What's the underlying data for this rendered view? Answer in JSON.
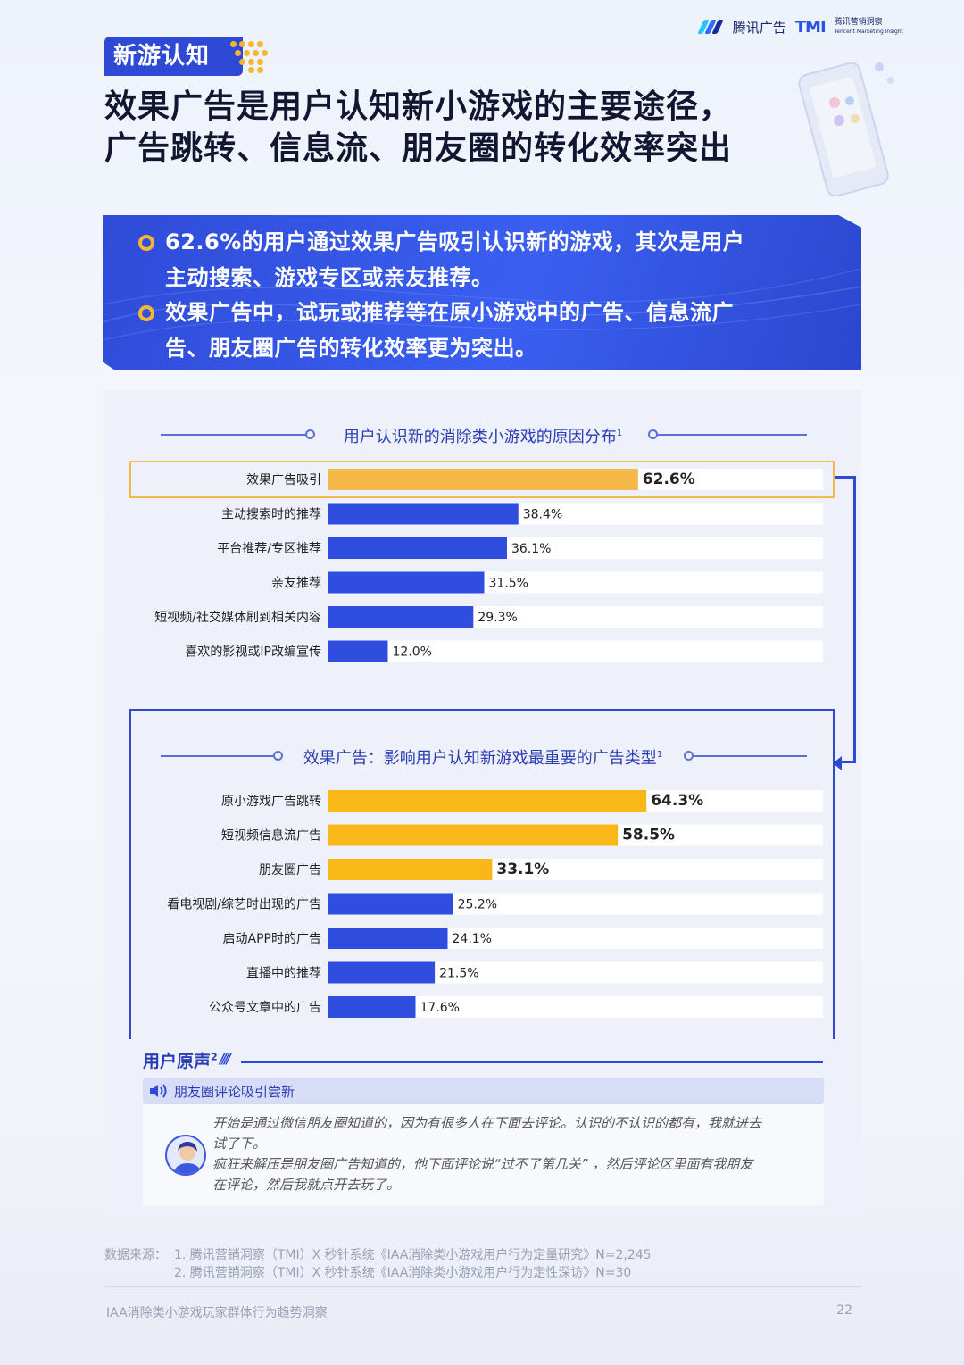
{
  "header": {
    "brand_cn": "腾讯广告",
    "brand_tmi": "TMI",
    "brand_tmi_sub_cn": "腾讯营销洞察",
    "brand_tmi_sub_en": "Tencent Marketing Insight"
  },
  "section_tag": "新游认知",
  "headline": {
    "line1": "效果广告是用户认知新小游戏的主要途径，",
    "line2": "广告跳转、信息流、朋友圈的转化效率突出"
  },
  "banner": {
    "item1_line1": "62.6%的用户通过效果广告吸引认识新的游戏，其次是用户",
    "item1_line2": "主动搜索、游戏专区或亲友推荐。",
    "item2_line1": "效果广告中，试玩或推荐等在原小游戏中的广告、信息流广",
    "item2_line2": "告、朋友圈广告的转化效率更为突出。"
  },
  "chart_data": [
    {
      "type": "bar",
      "orientation": "horizontal",
      "title": "用户认识新的消除类小游戏的原因分布",
      "title_sup": "1",
      "categories": [
        "效果广告吸引",
        "主动搜索时的推荐",
        "平台推荐/专区推荐",
        "亲友推荐",
        "短视频/社交媒体刷到相关内容",
        "喜欢的影视或IP改编宣传"
      ],
      "values": [
        62.6,
        38.4,
        36.1,
        31.5,
        29.3,
        12.0
      ],
      "value_labels": [
        "62.6%",
        "38.4%",
        "36.1%",
        "31.5%",
        "29.3%",
        "12.0%"
      ],
      "highlight": [
        true,
        false,
        false,
        false,
        false,
        false
      ],
      "xlim": [
        0,
        100
      ],
      "colors": {
        "default": "#2f4ee0",
        "highlight": "#f5b94a",
        "highlight_text": "#e8a020",
        "track": "#ffffff"
      }
    },
    {
      "type": "bar",
      "orientation": "horizontal",
      "title": "效果广告：影响用户认知新游戏最重要的广告类型",
      "title_sup": "1",
      "categories": [
        "原小游戏广告跳转",
        "短视频信息流广告",
        "朋友圈广告",
        "看电视剧/综艺时出现的广告",
        "启动APP时的广告",
        "直播中的推荐",
        "公众号文章中的广告"
      ],
      "values": [
        64.3,
        58.5,
        33.1,
        25.2,
        24.1,
        21.5,
        17.6
      ],
      "value_labels": [
        "64.3%",
        "58.5%",
        "33.1%",
        "25.2%",
        "24.1%",
        "21.5%",
        "17.6%"
      ],
      "highlight": [
        true,
        true,
        true,
        false,
        false,
        false,
        false
      ],
      "xlim": [
        0,
        100
      ],
      "colors": {
        "default": "#2f4ee0",
        "highlight": "#f8b818",
        "highlight_text": "#e8a020",
        "track": "#ffffff"
      }
    }
  ],
  "voice": {
    "title": "用户原声",
    "title_sup": "2",
    "bar_text": "朋友圈评论吸引尝新",
    "quote1_line1": "开始是通过微信朋友圈知道的，因为有很多人在下面去评论。认识的不认识的都有，我就进去",
    "quote1_line2": "试了下。",
    "quote2_line1": "疯狂来解压是朋友圈广告知道的，他下面评论说“过不了第几关”  ，然后评论区里面有我朋友",
    "quote2_line2": "在评论，然后我就点开去玩了。"
  },
  "source": {
    "label": "数据来源：",
    "line1": "1. 腾讯营销洞察（TMI）X 秒针系统《IAA消除类小游戏用户行为定量研究》N=2,245",
    "line2": "2. 腾讯营销洞察（TMI）X 秒针系统《IAA消除类小游戏用户行为定性深访》N=30"
  },
  "footer": {
    "report_name": "IAA消除类小游戏玩家群体行为趋势洞察",
    "page_number": "22"
  }
}
